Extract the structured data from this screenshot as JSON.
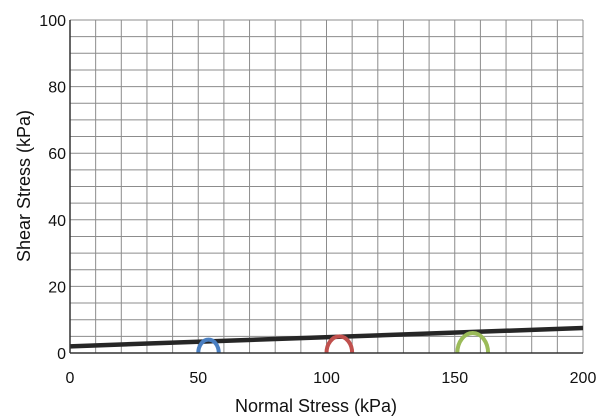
{
  "chart_data": {
    "type": "line",
    "title": "",
    "xlabel": "Normal Stress (kPa)",
    "ylabel": "Shear Stress (kPa)",
    "xlim": [
      0,
      200
    ],
    "ylim": [
      0,
      100
    ],
    "x_ticks": [
      0,
      50,
      100,
      150,
      200
    ],
    "y_ticks": [
      0,
      20,
      40,
      60,
      80,
      100
    ],
    "x_minor_step": 10,
    "y_minor_step": 5,
    "grid": true,
    "legend": "none",
    "series": [
      {
        "kind": "line",
        "color": "#262626",
        "x": [
          0,
          200
        ],
        "y": [
          2,
          7.5
        ]
      },
      {
        "kind": "mohr_circle",
        "color": "#4a7fc1",
        "center": 54,
        "radius": 4
      },
      {
        "kind": "mohr_circle",
        "color": "#c0504d",
        "center": 105,
        "radius": 5
      },
      {
        "kind": "mohr_circle",
        "color": "#9bbb59",
        "center": 157,
        "radius": 6
      }
    ]
  }
}
